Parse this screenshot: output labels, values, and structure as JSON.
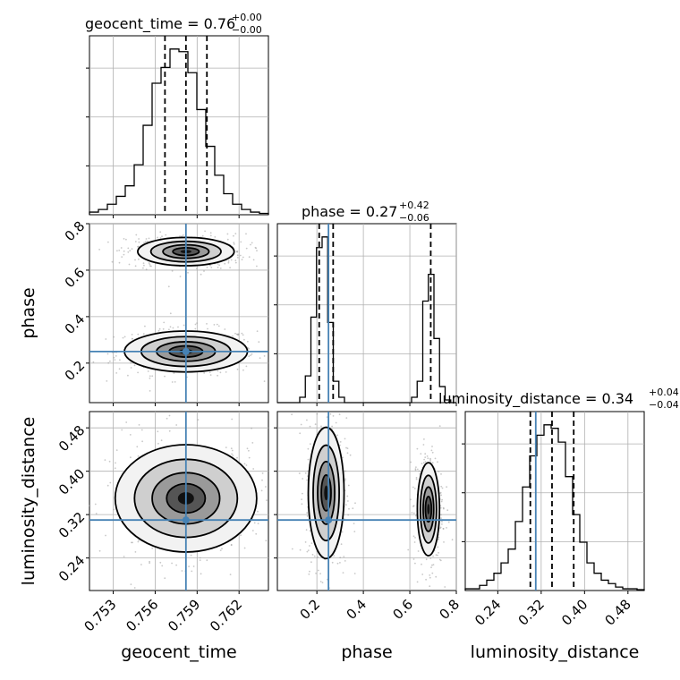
{
  "chart_data": {
    "type": "corner",
    "parameters": [
      {
        "name": "geocent_time",
        "label": "geocent_time",
        "range": [
          0.7513,
          0.7641
        ],
        "ticks": [
          0.753,
          0.756,
          0.759,
          0.762
        ],
        "tick_labels": [
          "0.753",
          "0.756",
          "0.759",
          "0.762"
        ],
        "truth": 0.7582,
        "quantiles": [
          0.7567,
          0.7582,
          0.7597
        ],
        "title": {
          "main": "geocent_time = 0.76",
          "upper": "+0.00",
          "lower": "−0.00"
        },
        "histogram": [
          2,
          4,
          8,
          14,
          22,
          38,
          68,
          100,
          112,
          126,
          124,
          108,
          80,
          52,
          30,
          16,
          8,
          4,
          2,
          1
        ]
      },
      {
        "name": "phase",
        "label": "phase",
        "range": [
          0.03,
          0.8
        ],
        "ticks": [
          0.2,
          0.4,
          0.6,
          0.8
        ],
        "tick_labels": [
          "0.2",
          "0.4",
          "0.6",
          "0.8"
        ],
        "truth": 0.25,
        "quantiles": [
          0.21,
          0.27,
          0.69
        ],
        "title": {
          "main": "phase = 0.27",
          "upper": "+0.42",
          "lower": "−0.06"
        },
        "histogram": [
          0,
          0,
          0,
          0,
          2,
          10,
          32,
          58,
          62,
          30,
          8,
          2,
          0,
          0,
          0,
          0,
          0,
          0,
          0,
          0,
          0,
          0,
          0,
          0,
          2,
          8,
          38,
          48,
          24,
          6,
          1,
          0
        ]
      },
      {
        "name": "luminosity_distance",
        "label": "luminosity_distance",
        "range": [
          0.18,
          0.51
        ],
        "ticks": [
          0.24,
          0.32,
          0.4,
          0.48
        ],
        "tick_labels": [
          "0.24",
          "0.32",
          "0.40",
          "0.48"
        ],
        "truth": 0.31,
        "quantiles": [
          0.3,
          0.34,
          0.38
        ],
        "title": {
          "main": "luminosity_distance = 0.34",
          "upper": "+0.04",
          "lower": "−0.04"
        },
        "histogram": [
          1,
          1,
          3,
          6,
          10,
          16,
          24,
          40,
          60,
          78,
          90,
          96,
          94,
          86,
          66,
          44,
          28,
          16,
          10,
          6,
          4,
          2,
          1,
          1,
          0.5
        ]
      }
    ],
    "joint": [
      {
        "x_param": "geocent_time",
        "y_param": "phase",
        "modes": [
          {
            "center": [
              0.7582,
              0.25
            ],
            "spread": [
              0.002,
              0.04
            ],
            "weight": 1.0
          },
          {
            "center": [
              0.7582,
              0.68
            ],
            "spread": [
              0.0017,
              0.03
            ],
            "weight": 0.85
          }
        ]
      },
      {
        "x_param": "geocent_time",
        "y_param": "luminosity_distance",
        "modes": [
          {
            "center": [
              0.7582,
              0.35
            ],
            "spread": [
              0.0023,
              0.045
            ],
            "weight": 1.0
          }
        ]
      },
      {
        "x_param": "phase",
        "y_param": "luminosity_distance",
        "modes": [
          {
            "center": [
              0.24,
              0.36
            ],
            "spread": [
              0.035,
              0.055
            ],
            "weight": 1.0
          },
          {
            "center": [
              0.68,
              0.33
            ],
            "spread": [
              0.025,
              0.045
            ],
            "weight": 0.75
          }
        ]
      }
    ],
    "colors": {
      "truth": "#4682b4",
      "histogram": "#000000",
      "quantile": "#000000",
      "grid": "#b0b0b0",
      "density": "#000000"
    },
    "grid": true
  }
}
